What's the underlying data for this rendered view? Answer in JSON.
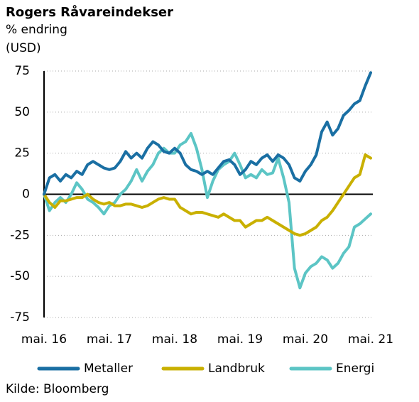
{
  "chart_data": {
    "type": "line",
    "title": "Rogers Råvareindekser",
    "subtitle": "% endring",
    "y_label": "(USD)",
    "source": "Kilde: Bloomberg",
    "categories": [
      "mai. 16",
      null,
      null,
      null,
      null,
      null,
      null,
      null,
      null,
      null,
      null,
      null,
      "mai. 17",
      null,
      null,
      null,
      null,
      null,
      null,
      null,
      null,
      null,
      null,
      null,
      "mai. 18",
      null,
      null,
      null,
      null,
      null,
      null,
      null,
      null,
      null,
      null,
      null,
      "mai. 19",
      null,
      null,
      null,
      null,
      null,
      null,
      null,
      null,
      null,
      null,
      null,
      "mai. 20",
      null,
      null,
      null,
      null,
      null,
      null,
      null,
      null,
      null,
      null,
      null,
      "mai. 21"
    ],
    "series": [
      {
        "name": "Metaller",
        "color": "#1a6fa3",
        "values": [
          0,
          10,
          12,
          8,
          12,
          10,
          14,
          12,
          18,
          20,
          18,
          16,
          15,
          16,
          20,
          26,
          22,
          25,
          22,
          28,
          32,
          30,
          26,
          25,
          28,
          25,
          18,
          15,
          14,
          12,
          14,
          12,
          16,
          20,
          21,
          18,
          12,
          15,
          20,
          18,
          22,
          24,
          20,
          24,
          22,
          18,
          10,
          8,
          14,
          18,
          24,
          38,
          44,
          36,
          40,
          48,
          51,
          55,
          57,
          66,
          74
        ]
      },
      {
        "name": "Landbruk",
        "color": "#c9b000",
        "values": [
          0,
          -5,
          -8,
          -4,
          -4,
          -3,
          -2,
          -2,
          0,
          -3,
          -5,
          -6,
          -5,
          -7,
          -7,
          -6,
          -6,
          -7,
          -8,
          -7,
          -5,
          -3,
          -2,
          -3,
          -3,
          -8,
          -10,
          -12,
          -11,
          -11,
          -12,
          -13,
          -14,
          -12,
          -14,
          -16,
          -16,
          -20,
          -18,
          -16,
          -16,
          -14,
          -16,
          -18,
          -20,
          -22,
          -24,
          -25,
          -24,
          -22,
          -20,
          -16,
          -14,
          -10,
          -5,
          0,
          5,
          10,
          12,
          24,
          22
        ]
      },
      {
        "name": "Energi",
        "color": "#5cc5c5",
        "values": [
          0,
          -10,
          -5,
          -2,
          -5,
          0,
          7,
          3,
          -3,
          -5,
          -8,
          -12,
          -7,
          -5,
          0,
          3,
          8,
          15,
          8,
          14,
          18,
          25,
          28,
          25,
          25,
          30,
          32,
          37,
          28,
          15,
          -2,
          8,
          15,
          18,
          20,
          25,
          18,
          10,
          12,
          10,
          15,
          12,
          13,
          22,
          10,
          -5,
          -45,
          -57,
          -48,
          -44,
          -42,
          -38,
          -40,
          -45,
          -42,
          -36,
          -32,
          -20,
          -18,
          -15,
          -12
        ]
      }
    ],
    "ylim": [
      -75,
      75
    ],
    "yticks": [
      75,
      50,
      25,
      0,
      -25,
      -50,
      -75
    ],
    "grid": true
  }
}
